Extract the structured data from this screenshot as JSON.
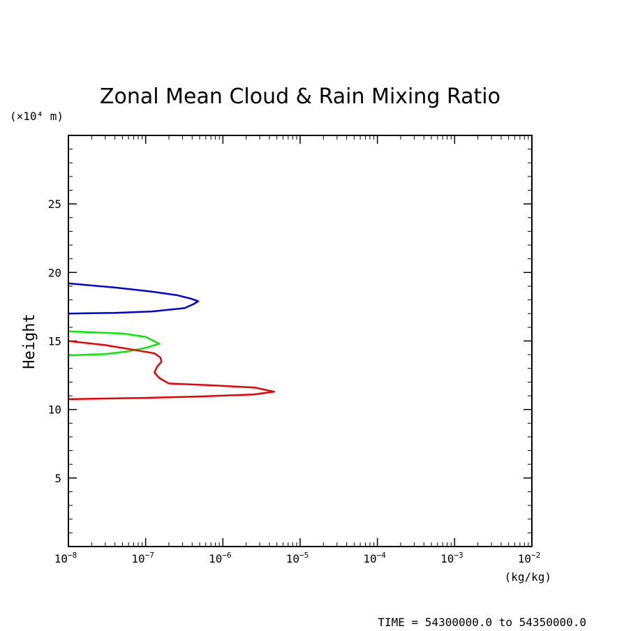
{
  "chart_data": {
    "type": "line",
    "title": "Zonal Mean Cloud & Rain Mixing Ratio",
    "xlabel": "(kg/kg)",
    "ylabel": "Height",
    "y_unit": "(×10⁴ m)",
    "x_scale": "log",
    "xlim": [
      1e-08,
      0.01
    ],
    "ylim": [
      0,
      30
    ],
    "x_ticks": [
      {
        "base": "10",
        "exp": "−8",
        "value": 1e-08
      },
      {
        "base": "10",
        "exp": "−7",
        "value": 1e-07
      },
      {
        "base": "10",
        "exp": "−6",
        "value": 1e-06
      },
      {
        "base": "10",
        "exp": "−5",
        "value": 1e-05
      },
      {
        "base": "10",
        "exp": "−4",
        "value": 0.0001
      },
      {
        "base": "10",
        "exp": "−3",
        "value": 0.001
      },
      {
        "base": "10",
        "exp": "−2",
        "value": 0.01
      }
    ],
    "y_ticks": [
      "5",
      "10",
      "15",
      "20",
      "25"
    ],
    "y_tick_values": [
      5,
      10,
      15,
      20,
      25
    ],
    "grid": false,
    "footer": "TIME = 54300000.0 to 54350000.0",
    "series": [
      {
        "color": "#0000dd",
        "points": [
          [
            1e-08,
            19.2
          ],
          [
            4e-08,
            18.9
          ],
          [
            1.2e-07,
            18.6
          ],
          [
            2.5e-07,
            18.35
          ],
          [
            3.8e-07,
            18.1
          ],
          [
            4.8e-07,
            17.9
          ],
          [
            4.2e-07,
            17.7
          ],
          [
            3.2e-07,
            17.4
          ],
          [
            1.2e-07,
            17.15
          ],
          [
            4e-08,
            17.05
          ],
          [
            1e-08,
            17.0
          ]
        ]
      },
      {
        "color": "#00ee00",
        "points": [
          [
            1e-08,
            15.7
          ],
          [
            5e-08,
            15.55
          ],
          [
            1e-07,
            15.3
          ],
          [
            1.5e-07,
            14.8
          ],
          [
            1e-07,
            14.5
          ],
          [
            6e-08,
            14.25
          ],
          [
            3e-08,
            14.05
          ],
          [
            1e-08,
            13.95
          ]
        ]
      },
      {
        "color": "#ee0000",
        "points": [
          [
            1e-08,
            15.0
          ],
          [
            3e-08,
            14.7
          ],
          [
            8e-08,
            14.3
          ],
          [
            1.3e-07,
            14.1
          ],
          [
            1.55e-07,
            13.8
          ],
          [
            1.6e-07,
            13.5
          ],
          [
            1.4e-07,
            13.1
          ],
          [
            1.3e-07,
            12.7
          ],
          [
            1.5e-07,
            12.3
          ],
          [
            2e-07,
            11.9
          ],
          [
            8e-07,
            11.75
          ],
          [
            2.6e-06,
            11.6
          ],
          [
            4.6e-06,
            11.3
          ],
          [
            2.5e-06,
            11.1
          ],
          [
            5e-07,
            10.95
          ],
          [
            1e-07,
            10.85
          ],
          [
            1e-08,
            10.75
          ]
        ]
      }
    ]
  }
}
